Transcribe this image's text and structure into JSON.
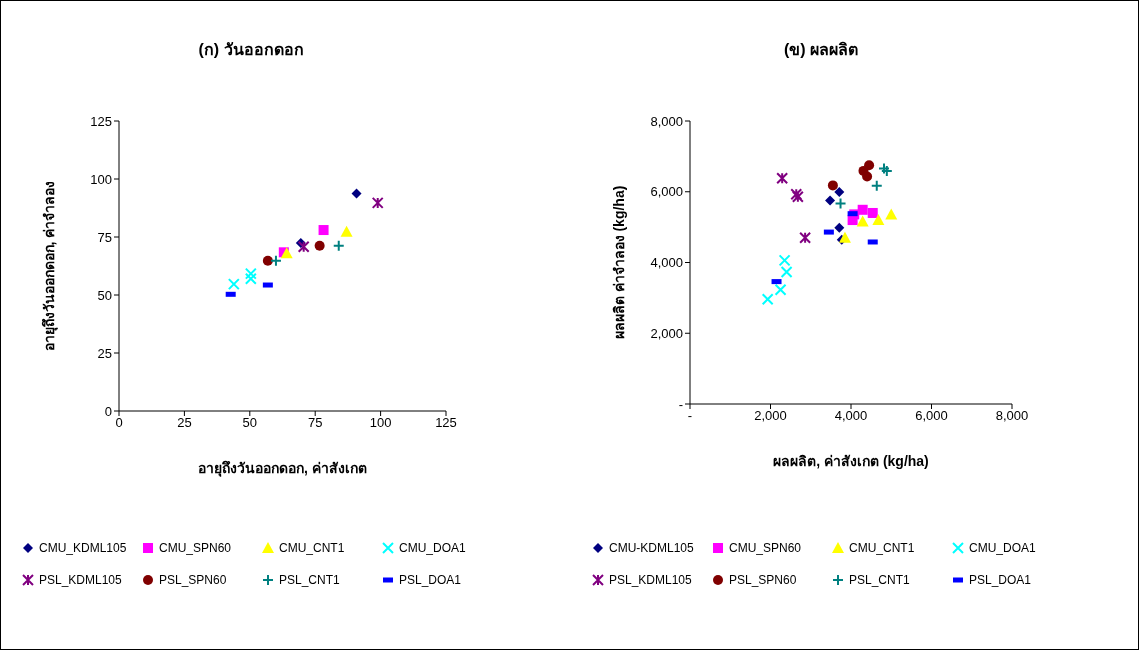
{
  "chart_data": [
    {
      "type": "scatter",
      "title": "(ก) วันออกดอก",
      "xlabel": "อายุถึงวันออกดอก, ค่าสังเกต",
      "ylabel": "อายุถึงวันออกดอก, ค่าจำลอง",
      "xlim": [
        0,
        125
      ],
      "xticks": [
        0,
        25,
        50,
        75,
        100,
        125
      ],
      "ylim": [
        0,
        125
      ],
      "yticks": [
        0,
        25,
        50,
        75,
        100,
        125
      ],
      "grid": false,
      "legend": "bottom",
      "series": [
        {
          "name": "CMU_KDML105",
          "color": "#000080",
          "marker": "diamond",
          "x": [
            90.8,
            69.5
          ],
          "values": [
            93.8,
            72.4
          ]
        },
        {
          "name": "CMU_SPN60",
          "color": "#ff00ff",
          "marker": "square",
          "x": [
            78.2,
            63
          ],
          "values": [
            78,
            68.4
          ]
        },
        {
          "name": "CMU_CNT1",
          "color": "#ffff00",
          "marker": "triangle",
          "x": [
            87,
            64.1
          ],
          "values": [
            77.3,
            68
          ]
        },
        {
          "name": "CMU_DOA1",
          "color": "#00ffff",
          "marker": "x",
          "x": [
            43.9,
            50.4,
            50.4
          ],
          "values": [
            54.7,
            59.2,
            57
          ]
        },
        {
          "name": "PSL_KDML105",
          "color": "#800080",
          "marker": "cross",
          "x": [
            98.9,
            70.6
          ],
          "values": [
            89.7,
            70.8
          ]
        },
        {
          "name": "PSL_SPN60",
          "color": "#800000",
          "marker": "circle",
          "x": [
            76.7,
            56.9
          ],
          "values": [
            71.2,
            64.8
          ]
        },
        {
          "name": "PSL_CNT1",
          "color": "#008080",
          "marker": "plus",
          "x": [
            84,
            60
          ],
          "values": [
            71.2,
            64.8
          ]
        },
        {
          "name": "PSL_DOA1",
          "color": "#0000ff",
          "x": [
            42.7,
            56.9
          ],
          "values": [
            50.3,
            54.3
          ]
        }
      ]
    },
    {
      "type": "scatter",
      "title": "(ข) ผลผลิต",
      "xlabel": "ผลผลิต, ค่าสังเกต (kg/ha)",
      "ylabel": "ผลผลิต ค่าจำลอง (kg/ha)",
      "xlim": [
        0,
        8000
      ],
      "xticks": [
        {
          "value": 0,
          "label": "-"
        },
        {
          "value": 2000,
          "label": "2,000"
        },
        {
          "value": 4000,
          "label": "4,000"
        },
        {
          "value": 6000,
          "label": "6,000"
        },
        {
          "value": 8000,
          "label": "8,000"
        }
      ],
      "ylim": [
        0,
        8000
      ],
      "yticks": [
        {
          "value": 0,
          "label": "-"
        },
        {
          "value": 2000,
          "label": "2,000"
        },
        {
          "value": 4000,
          "label": "4,000"
        },
        {
          "value": 6000,
          "label": "6,000"
        },
        {
          "value": 8000,
          "label": "8,000"
        }
      ],
      "grid": false,
      "legend": "bottom",
      "series": [
        {
          "name": "CMU-KDML105",
          "color": "#000080",
          "marker": "diamond",
          "x": [
            3710,
            3480,
            3710,
            3770
          ],
          "values": [
            5990,
            5750,
            4980,
            4640
          ]
        },
        {
          "name": "CMU_SPN60",
          "color": "#ff00ff",
          "marker": "square",
          "x": [
            4040,
            4290,
            4540,
            4080
          ],
          "values": [
            5200,
            5490,
            5400,
            5360
          ]
        },
        {
          "name": "CMU_CNT1",
          "color": "#ffff00",
          "marker": "triangle",
          "x": [
            4290,
            4680,
            5000,
            3850
          ],
          "values": [
            5160,
            5200,
            5360,
            4700
          ]
        },
        {
          "name": "CMU_DOA1",
          "color": "#00ffff",
          "marker": "x",
          "x": [
            2350,
            2400,
            2250,
            1930
          ],
          "values": [
            4060,
            3730,
            3230,
            2960
          ]
        },
        {
          "name": "PSL_KDML105",
          "color": "#800080",
          "marker": "cross",
          "x": [
            2290,
            2640,
            2680,
            2860
          ],
          "values": [
            6380,
            5930,
            5860,
            4700
          ]
        },
        {
          "name": "PSL_SPN60",
          "color": "#800000",
          "marker": "circle",
          "x": [
            3550,
            4450,
            4310,
            4400
          ],
          "values": [
            6180,
            6750,
            6590,
            6430
          ]
        },
        {
          "name": "PSL_CNT1",
          "color": "#008080",
          "marker": "plus",
          "x": [
            4820,
            4890,
            4640,
            3740
          ],
          "values": [
            6660,
            6590,
            6170,
            5670
          ]
        },
        {
          "name": "PSL_DOA1",
          "color": "#0000ff",
          "x": [
            4040,
            3450,
            4540,
            2150
          ],
          "values": [
            5380,
            4860,
            4580,
            3460
          ]
        }
      ]
    }
  ]
}
